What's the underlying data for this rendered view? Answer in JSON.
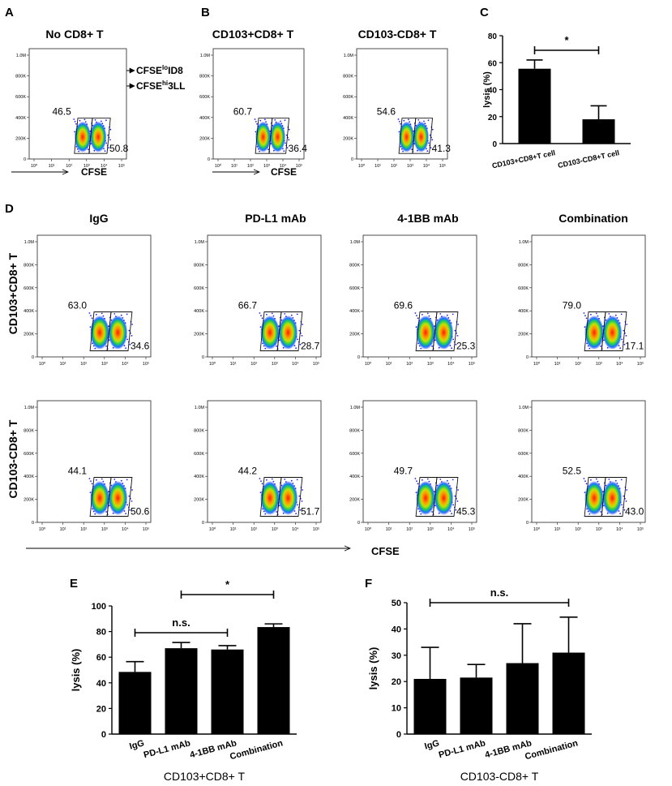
{
  "panel_labels": {
    "A": "A",
    "B": "B",
    "C": "C",
    "D": "D",
    "E": "E",
    "F": "F"
  },
  "flow_axis": {
    "y_ticks": [
      "0",
      "200K",
      "400K",
      "600K",
      "800K",
      "1.0M"
    ],
    "x_ticks": [
      "10⁰",
      "10¹",
      "10²",
      "10³",
      "10⁴",
      "10⁵"
    ],
    "x_label": "CFSE"
  },
  "panelA": {
    "title": "No CD8+ T",
    "plots": [
      {
        "left": "46.5",
        "right": "50.8"
      }
    ],
    "annot_lo": "CFSE",
    "annot_lo_sup": "lo",
    "annot_lo_tail": "ID8",
    "annot_hi": "CFSE",
    "annot_hi_sup": "hi",
    "annot_hi_tail": "3LL"
  },
  "panelB": {
    "titles": [
      "CD103+CD8+ T",
      "CD103-CD8+ T"
    ],
    "plots": [
      {
        "left": "60.7",
        "right": "36.4"
      },
      {
        "left": "54.6",
        "right": "41.3"
      }
    ]
  },
  "panelD": {
    "col_titles": [
      "IgG",
      "PD-L1 mAb",
      "4-1BB mAb",
      "Combination"
    ],
    "row_labels": [
      "CD103+CD8+ T",
      "CD103-CD8+ T"
    ],
    "rows": [
      [
        {
          "left": "63.0",
          "right": "34.6"
        },
        {
          "left": "66.7",
          "right": "28.7"
        },
        {
          "left": "69.6",
          "right": "25.3"
        },
        {
          "left": "79.0",
          "right": "17.1"
        }
      ],
      [
        {
          "left": "44.1",
          "right": "50.6"
        },
        {
          "left": "44.2",
          "right": "51.7"
        },
        {
          "left": "49.7",
          "right": "45.3"
        },
        {
          "left": "52.5",
          "right": "43.0"
        }
      ]
    ]
  },
  "chart_data": [
    {
      "panel": "C",
      "type": "bar",
      "title": "",
      "xlabel": "",
      "ylabel": "lysis  (%)",
      "ylim": [
        0,
        80
      ],
      "yticks": [
        0,
        20,
        40,
        60,
        80
      ],
      "categories": [
        "CD103+CD8+T cell",
        "CD103-CD8+T cell"
      ],
      "values": [
        55.5,
        18
      ],
      "errors": [
        6.5,
        10
      ],
      "annotations": [
        {
          "from": 0,
          "to": 1,
          "text": "*"
        }
      ]
    },
    {
      "panel": "E",
      "type": "bar",
      "title": "",
      "xlabel": "CD103+CD8+ T",
      "ylabel": "lysis  (%)",
      "ylim": [
        0,
        100
      ],
      "yticks": [
        0,
        20,
        40,
        60,
        80,
        100
      ],
      "categories": [
        "IgG",
        "PD-L1 mAb",
        "4-1BB mAb",
        "Combination"
      ],
      "values": [
        48.5,
        67,
        66,
        83.5
      ],
      "errors": [
        8,
        4.5,
        3,
        2.5
      ],
      "annotations": [
        {
          "from": 1,
          "to": 3,
          "text": "*"
        },
        {
          "from": 0,
          "to": 2,
          "text": "n.s."
        }
      ]
    },
    {
      "panel": "F",
      "type": "bar",
      "title": "",
      "xlabel": "CD103-CD8+ T",
      "ylabel": "lysis  (%)",
      "ylim": [
        0,
        50
      ],
      "yticks": [
        0,
        10,
        20,
        30,
        40,
        50
      ],
      "categories": [
        "IgG",
        "PD-L1 mAb",
        "4-1BB mAb",
        "Combination"
      ],
      "values": [
        21,
        21.5,
        27,
        31
      ],
      "errors": [
        12,
        5,
        15,
        13.5
      ],
      "annotations": [
        {
          "from": 0,
          "to": 3,
          "text": "n.s."
        }
      ]
    }
  ]
}
